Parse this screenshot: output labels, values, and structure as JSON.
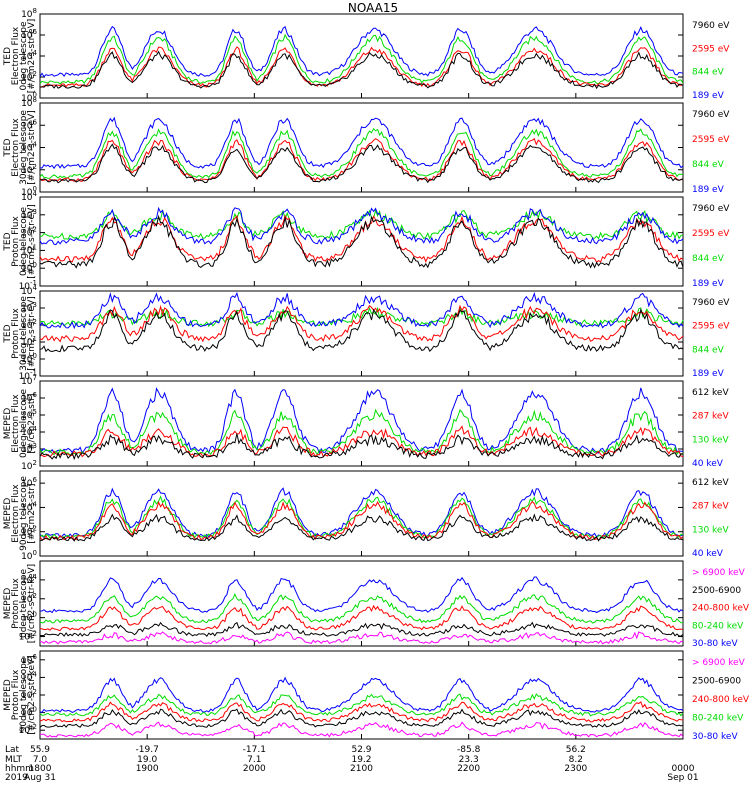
{
  "title": "NOAA15",
  "colors": {
    "blue": "#0000ff",
    "red": "#ff0000",
    "green": "#00dd00",
    "black": "#000000",
    "magenta": "#ff00ff"
  },
  "chart_data": [
    {
      "type": "line",
      "ylabel": [
        "TED",
        "Electron Flux",
        "0deg telescope",
        "[#/cm2-s-str-eV]"
      ],
      "yticks": [
        "10^0",
        "10^2",
        "10^4",
        "10^6",
        "10^8"
      ],
      "log_range": [
        0,
        8
      ],
      "legend": [
        {
          "text": "7960 eV",
          "color": "black"
        },
        {
          "text": "2595 eV",
          "color": "red"
        },
        {
          "text": "844 eV",
          "color": "green"
        },
        {
          "text": "189 eV",
          "color": "blue"
        }
      ],
      "series": [
        {
          "name": "7960 eV",
          "color": "black",
          "base": 1.1,
          "amp": 3.0
        },
        {
          "name": "2595 eV",
          "color": "red",
          "base": 1.2,
          "amp": 3.4
        },
        {
          "name": "844 eV",
          "color": "green",
          "base": 1.5,
          "amp": 4.2
        },
        {
          "name": "189 eV",
          "color": "blue",
          "base": 2.2,
          "amp": 4.3
        }
      ]
    },
    {
      "type": "line",
      "ylabel": [
        "TED",
        "Electron Flux",
        "30deg telescope",
        "[#/cm2-s-str-eV]"
      ],
      "yticks": [
        "10^0",
        "10^2",
        "10^4",
        "10^6",
        "10^8"
      ],
      "log_range": [
        0,
        8
      ],
      "legend": [
        {
          "text": "7960 eV",
          "color": "black"
        },
        {
          "text": "2595 eV",
          "color": "red"
        },
        {
          "text": "844 eV",
          "color": "green"
        },
        {
          "text": "189 eV",
          "color": "blue"
        }
      ],
      "series": [
        {
          "name": "7960 eV",
          "color": "black",
          "base": 1.0,
          "amp": 3.0
        },
        {
          "name": "2595 eV",
          "color": "red",
          "base": 1.1,
          "amp": 3.4
        },
        {
          "name": "844 eV",
          "color": "green",
          "base": 1.4,
          "amp": 4.0
        },
        {
          "name": "189 eV",
          "color": "blue",
          "base": 2.3,
          "amp": 4.2
        }
      ]
    },
    {
      "type": "line",
      "ylabel": [
        "TED",
        "Proton Flux",
        "0deg telescope",
        "[#/cm2-s-str-eV]"
      ],
      "yticks": [
        "10^-1",
        "10^0",
        "10^1",
        "10^2",
        "10^3",
        "10^4"
      ],
      "log_range": [
        -1,
        4
      ],
      "legend": [
        {
          "text": "7960 eV",
          "color": "black"
        },
        {
          "text": "2595 eV",
          "color": "red"
        },
        {
          "text": "844 eV",
          "color": "green"
        },
        {
          "text": "189 eV",
          "color": "blue"
        }
      ],
      "series": [
        {
          "name": "7960 eV",
          "color": "black",
          "base": 0.2,
          "amp": 2.4
        },
        {
          "name": "2595 eV",
          "color": "red",
          "base": 0.5,
          "amp": 2.2
        },
        {
          "name": "844 eV",
          "color": "green",
          "base": 1.8,
          "amp": 1.2
        },
        {
          "name": "189 eV",
          "color": "blue",
          "base": 1.5,
          "amp": 1.6
        }
      ]
    },
    {
      "type": "line",
      "ylabel": [
        "TED",
        "Proton Flux",
        "30deg telescope",
        "[#/cm2-s-str-eV]"
      ],
      "yticks": [
        "10^-1",
        "10^0",
        "10^1",
        "10^2",
        "10^3",
        "10^4"
      ],
      "log_range": [
        -1,
        4
      ],
      "legend": [
        {
          "text": "7960 eV",
          "color": "black"
        },
        {
          "text": "2595 eV",
          "color": "red"
        },
        {
          "text": "844 eV",
          "color": "green"
        },
        {
          "text": "189 eV",
          "color": "blue"
        }
      ],
      "series": [
        {
          "name": "7960 eV",
          "color": "black",
          "base": 0.6,
          "amp": 2.0
        },
        {
          "name": "2595 eV",
          "color": "red",
          "base": 1.2,
          "amp": 1.7
        },
        {
          "name": "844 eV",
          "color": "green",
          "base": 2.1,
          "amp": 0.6
        },
        {
          "name": "189 eV",
          "color": "blue",
          "base": 2.0,
          "amp": 1.6
        }
      ]
    },
    {
      "type": "line",
      "ylabel": [
        "MEPED",
        "Electron Flux",
        "0deg telescope",
        "[#/cm2-s-str]"
      ],
      "yticks": [
        "10^2",
        "10^3",
        "10^4",
        "10^5",
        "10^6",
        "10^7"
      ],
      "log_range": [
        2,
        7
      ],
      "legend": [
        {
          "text": "612 keV",
          "color": "black"
        },
        {
          "text": "287 keV",
          "color": "red"
        },
        {
          "text": "130 keV",
          "color": "green"
        },
        {
          "text": "40 keV",
          "color": "blue"
        }
      ],
      "series": [
        {
          "name": "612 keV",
          "color": "black",
          "base": 2.6,
          "amp": 1.0
        },
        {
          "name": "287 keV",
          "color": "red",
          "base": 2.7,
          "amp": 1.4
        },
        {
          "name": "130 keV",
          "color": "green",
          "base": 2.8,
          "amp": 2.2
        },
        {
          "name": "40 keV",
          "color": "blue",
          "base": 2.9,
          "amp": 3.4
        }
      ]
    },
    {
      "type": "line",
      "ylabel": [
        "MEPED",
        "Electron Flux",
        "90deg telescope",
        "[#/cm2-s-str]"
      ],
      "yticks": [
        "10^0",
        "10^2",
        "10^4",
        "10^6"
      ],
      "log_range": [
        0,
        7
      ],
      "legend": [
        {
          "text": "612 keV",
          "color": "black"
        },
        {
          "text": "287 keV",
          "color": "red"
        },
        {
          "text": "130 keV",
          "color": "green"
        },
        {
          "text": "40 keV",
          "color": "blue"
        }
      ],
      "series": [
        {
          "name": "612 keV",
          "color": "black",
          "base": 1.4,
          "amp": 1.7
        },
        {
          "name": "287 keV",
          "color": "red",
          "base": 1.5,
          "amp": 2.7
        },
        {
          "name": "130 keV",
          "color": "green",
          "base": 1.6,
          "amp": 3.0
        },
        {
          "name": "40 keV",
          "color": "blue",
          "base": 1.7,
          "amp": 3.6
        }
      ]
    },
    {
      "type": "line",
      "ylabel": [
        "MEPED",
        "Proton Flux",
        "0deg telescope",
        "[#/cm2-s-str-keV]"
      ],
      "yticks": [
        "10^-2",
        "10^0",
        "10^2",
        "10^4"
      ],
      "log_range": [
        -3,
        6
      ],
      "legend": [
        {
          "text": "> 6900 keV",
          "color": "magenta"
        },
        {
          "text": "2500-6900",
          "color": "black"
        },
        {
          "text": "240-800 keV",
          "color": "red"
        },
        {
          "text": "80-240 keV",
          "color": "green"
        },
        {
          "text": "30-80 keV",
          "color": "blue"
        }
      ],
      "series": [
        {
          "name": "> 6900 keV",
          "color": "magenta",
          "base": -2.6,
          "amp": 0.8
        },
        {
          "name": "2500-6900",
          "color": "black",
          "base": -1.8,
          "amp": 1.0
        },
        {
          "name": "240-800 keV",
          "color": "red",
          "base": -1.2,
          "amp": 2.2
        },
        {
          "name": "80-240 keV",
          "color": "green",
          "base": -0.4,
          "amp": 2.6
        },
        {
          "name": "30-80 keV",
          "color": "blue",
          "base": 0.7,
          "amp": 3.3
        }
      ]
    },
    {
      "type": "line",
      "ylabel": [
        "MEPED",
        "Proton Flux",
        "90deg telescope",
        "[#/cm2-s-str-keV]"
      ],
      "yticks": [
        "10^-2",
        "10^0",
        "10^2",
        "10^4",
        "10^6"
      ],
      "log_range": [
        -3,
        7
      ],
      "legend": [
        {
          "text": "> 6900 keV",
          "color": "magenta"
        },
        {
          "text": "2500-6900",
          "color": "black"
        },
        {
          "text": "240-800 keV",
          "color": "red"
        },
        {
          "text": "80-240 keV",
          "color": "green"
        },
        {
          "text": "30-80 keV",
          "color": "blue"
        }
      ],
      "series": [
        {
          "name": "> 6900 keV",
          "color": "magenta",
          "base": -2.6,
          "amp": 1.2
        },
        {
          "name": "2500-6900",
          "color": "black",
          "base": -1.5,
          "amp": 1.6
        },
        {
          "name": "240-800 keV",
          "color": "red",
          "base": -0.9,
          "amp": 1.8
        },
        {
          "name": "80-240 keV",
          "color": "green",
          "base": -0.2,
          "amp": 2.0
        },
        {
          "name": "30-80 keV",
          "color": "blue",
          "base": 0.2,
          "amp": 3.5
        }
      ]
    }
  ],
  "x_labels": {
    "row_labels": [
      "Lat",
      "MLT",
      "hhmm",
      "2019"
    ],
    "ticks": [
      {
        "lat": "55.9",
        "mlt": "7.0",
        "hhmm": "1800",
        "date": "Aug 31"
      },
      {
        "lat": "-19.7",
        "mlt": "19.0",
        "hhmm": "1900",
        "date": ""
      },
      {
        "lat": "-17.1",
        "mlt": "7.1",
        "hhmm": "2000",
        "date": ""
      },
      {
        "lat": "52.9",
        "mlt": "19.2",
        "hhmm": "2100",
        "date": ""
      },
      {
        "lat": "-85.8",
        "mlt": "23.3",
        "hhmm": "2200",
        "date": ""
      },
      {
        "lat": "56.2",
        "mlt": "8.2",
        "hhmm": "2300",
        "date": ""
      },
      {
        "lat": "",
        "mlt": "",
        "hhmm": "0000",
        "date": "Sep 01"
      }
    ]
  }
}
